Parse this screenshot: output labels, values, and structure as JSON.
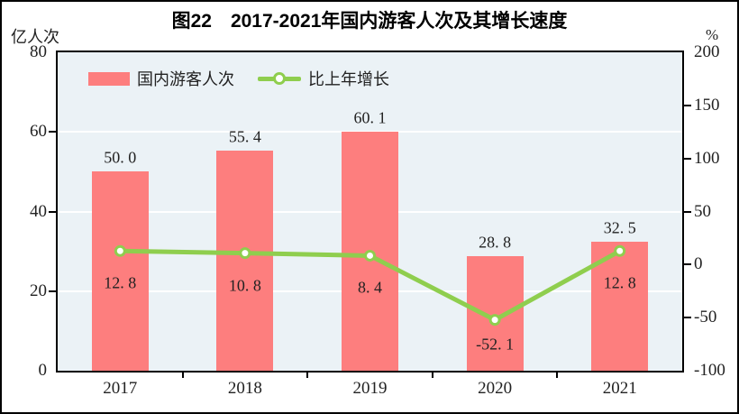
{
  "figure": {
    "title": "图22　2017-2021年国内游客人次及其增长速度",
    "left_axis_unit": "亿人次",
    "right_axis_unit": "%"
  },
  "legend": {
    "bars_label": "国内游客人次",
    "line_label": "比上年增长"
  },
  "colors": {
    "bar": "#fd7e7e",
    "line": "#8fce4e",
    "marker_fill": "#ffffff",
    "plot_bg": "#ebf2f6",
    "gridline": "#ffffff",
    "border": "#000000",
    "text": "#222222"
  },
  "chart_data": {
    "type": "bar+line combo",
    "title": "图22　2017-2021年国内游客人次及其增长速度",
    "categories": [
      "2017",
      "2018",
      "2019",
      "2020",
      "2021"
    ],
    "series": [
      {
        "name": "国内游客人次",
        "type": "bar",
        "axis": "left",
        "unit": "亿人次",
        "values": [
          50.0,
          55.4,
          60.1,
          28.8,
          32.5
        ],
        "labels": [
          "50. 0",
          "55. 4",
          "60. 1",
          "28. 8",
          "32. 5"
        ]
      },
      {
        "name": "比上年增长",
        "type": "line",
        "axis": "right",
        "unit": "%",
        "values": [
          12.8,
          10.8,
          8.4,
          -52.1,
          12.8
        ],
        "labels": [
          "12. 8",
          "10. 8",
          "8. 4",
          "-52. 1",
          "12. 8"
        ]
      }
    ],
    "left_axis": {
      "label": "亿人次",
      "min": 0,
      "max": 80,
      "ticks": [
        0,
        20,
        40,
        60,
        80
      ]
    },
    "right_axis": {
      "label": "%",
      "min": -100,
      "max": 200,
      "ticks": [
        -100,
        -50,
        0,
        50,
        100,
        150,
        200
      ]
    },
    "grid": "horizontal white gridlines at left-axis 20, 40, 60",
    "legend_position": "top-left inside plot area"
  }
}
